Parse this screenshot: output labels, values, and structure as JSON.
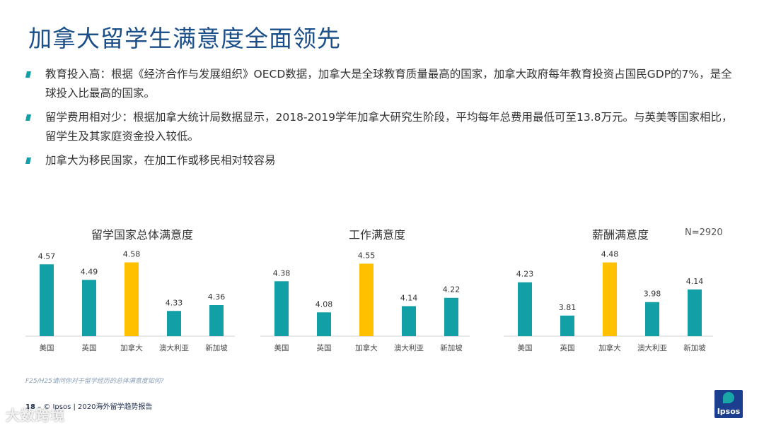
{
  "page": {
    "title": "加拿大留学生满意度全面领先",
    "bullets": [
      "教育投入高：根据《经济合作与发展组织》OECD数据，加拿大是全球教育质量最高的国家，加拿大政府每年教育投资占国民GDP的7%，是全球投入比最高的国家。",
      "留学费用相对少：根据加拿大统计局数据显示，2018-2019学年加拿大研究生阶段，平均每年总费用最低可至13.8万元。与英美等国家相比，留学生及其家庭资金投入较低。",
      "加拿大为移民国家，在加工作或移民相对较容易"
    ],
    "n_label": "N=2920",
    "source": "F25/H25请问你对于留学经历的总体满意度如何?",
    "footer": {
      "page_number": "18",
      "text": "–  © Ipsos | 2020海外留学趋势报告"
    },
    "watermark": "大数跨境",
    "logo_text": "Ipsos"
  },
  "colors": {
    "title": "#1b4f8a",
    "bar_default": "#12a0a6",
    "bar_highlight": "#ffc000",
    "bullet": "#12a0a6"
  },
  "chart_data": [
    {
      "type": "bar",
      "title": "留学国家总体满意度",
      "categories": [
        "美国",
        "英国",
        "加拿大",
        "澳大利亚",
        "新加坡"
      ],
      "values": [
        4.57,
        4.49,
        4.58,
        4.33,
        4.36
      ],
      "highlight": "加拿大",
      "ylim": [
        4.2,
        4.6
      ],
      "grid": false,
      "legend": "none"
    },
    {
      "type": "bar",
      "title": "工作满意度",
      "categories": [
        "美国",
        "英国",
        "加拿大",
        "澳大利亚",
        "新加坡"
      ],
      "values": [
        4.38,
        4.08,
        4.55,
        4.14,
        4.22
      ],
      "highlight": "加拿大",
      "ylim": [
        3.85,
        4.6
      ],
      "grid": false,
      "legend": "none"
    },
    {
      "type": "bar",
      "title": "薪酬满意度",
      "categories": [
        "美国",
        "英国",
        "加拿大",
        "澳大利亚",
        "新加坡"
      ],
      "values": [
        4.23,
        3.81,
        4.48,
        3.98,
        4.14
      ],
      "highlight": "加拿大",
      "ylim": [
        3.55,
        4.53
      ],
      "grid": false,
      "legend": "none"
    }
  ]
}
